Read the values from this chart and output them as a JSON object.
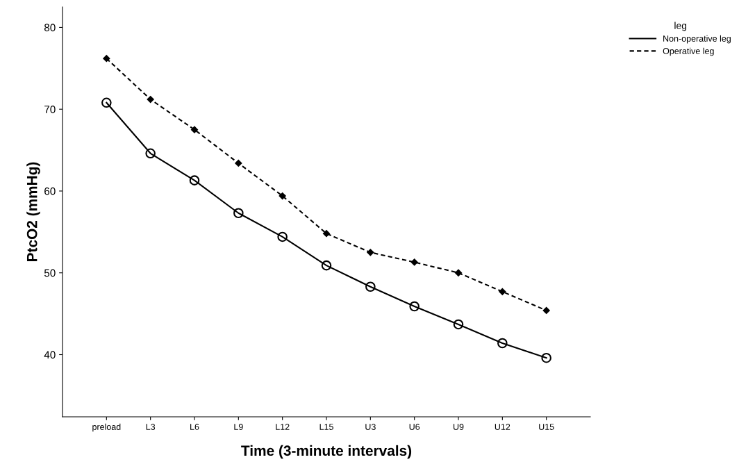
{
  "chart_data": {
    "type": "line",
    "xlabel": "Time (3-minute intervals)",
    "ylabel": "PtcO2 (mmHg)",
    "legend_title": "leg",
    "legend": "top right",
    "categories": [
      "preload",
      "L3",
      "L6",
      "L9",
      "L12",
      "L15",
      "U3",
      "U6",
      "U9",
      "U12",
      "U15"
    ],
    "series": [
      {
        "name": "Non-operative leg",
        "color": "#000000",
        "marker": "circle",
        "line_style": "solid",
        "values": [
          70.8,
          64.6,
          61.3,
          57.3,
          54.4,
          50.9,
          48.3,
          45.9,
          43.7,
          41.4,
          39.6
        ]
      },
      {
        "name": "Operative leg",
        "color": "#000000",
        "marker": "diamond",
        "line_style": "dashed",
        "values": [
          76.2,
          71.2,
          67.5,
          63.4,
          59.4,
          54.8,
          52.5,
          51.3,
          50.0,
          47.7,
          45.4
        ]
      }
    ],
    "ylim": [
      32.4,
      82.5
    ],
    "yticks": [
      40,
      50,
      60,
      70,
      80
    ],
    "grid": false
  }
}
